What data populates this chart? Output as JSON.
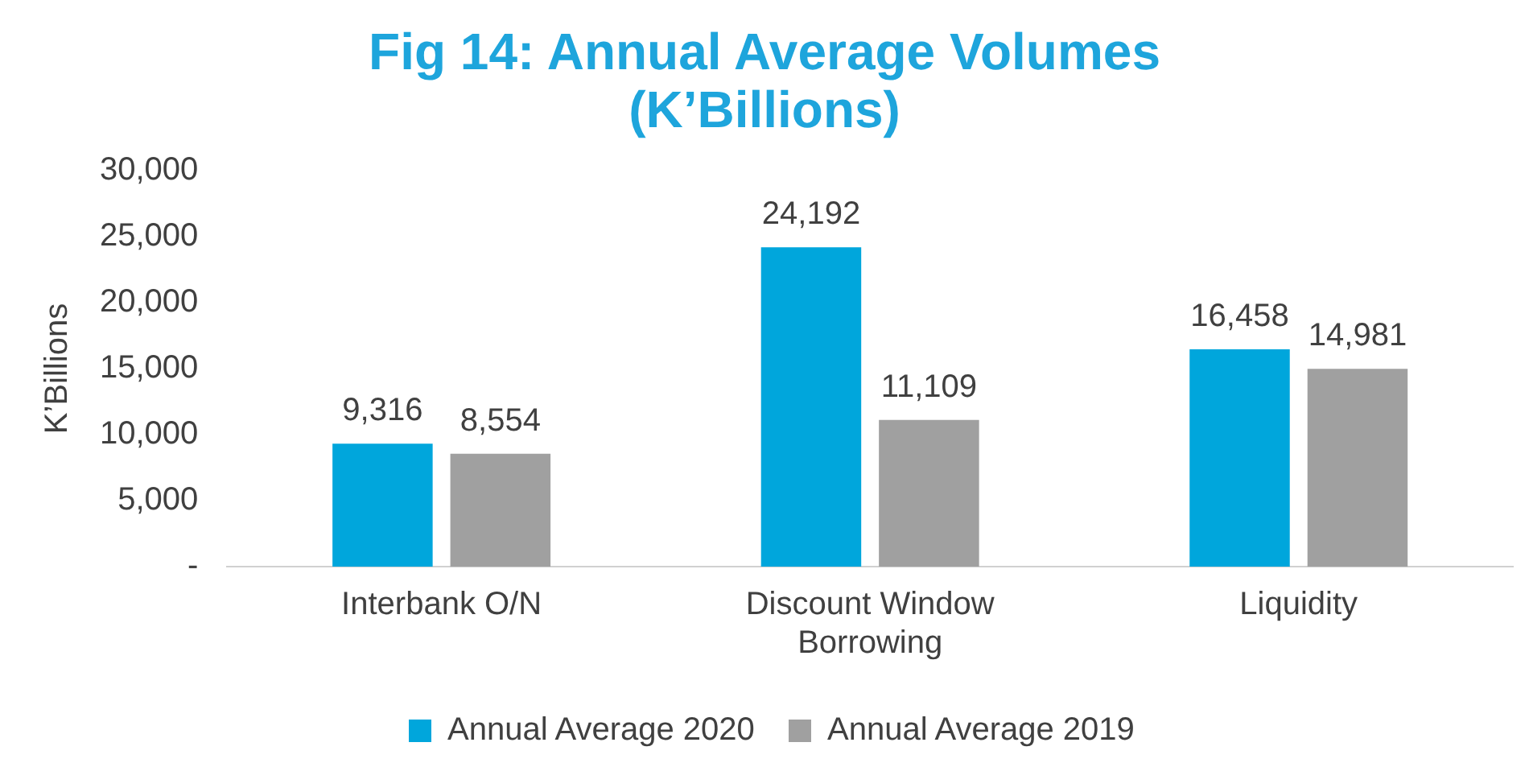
{
  "chart_data": {
    "type": "bar",
    "title": "Fig 14: Annual Average Volumes (K’Billions)",
    "ylabel": "K’Billions",
    "categories": [
      "Interbank O/N",
      "Discount Window Borrowing",
      "Liquidity"
    ],
    "series": [
      {
        "name": "Annual Average 2020",
        "color": "#00a6dc",
        "values": [
          9316,
          24192,
          16458
        ],
        "value_labels": [
          "9,316",
          "24,192",
          "16,458"
        ]
      },
      {
        "name": "Annual Average 2019",
        "color": "#a0a0a0",
        "values": [
          8554,
          11109,
          14981
        ],
        "value_labels": [
          "8,554",
          "11,109",
          "14,981"
        ]
      }
    ],
    "ylim": [
      0,
      30000
    ],
    "yticks": [
      {
        "value": 0,
        "label": "-"
      },
      {
        "value": 5000,
        "label": "5,000"
      },
      {
        "value": 10000,
        "label": "10,000"
      },
      {
        "value": 15000,
        "label": "15,000"
      },
      {
        "value": 20000,
        "label": "20,000"
      },
      {
        "value": 25000,
        "label": "25,000"
      },
      {
        "value": 30000,
        "label": "30,000"
      }
    ],
    "grid": false,
    "legend": "bottom"
  }
}
